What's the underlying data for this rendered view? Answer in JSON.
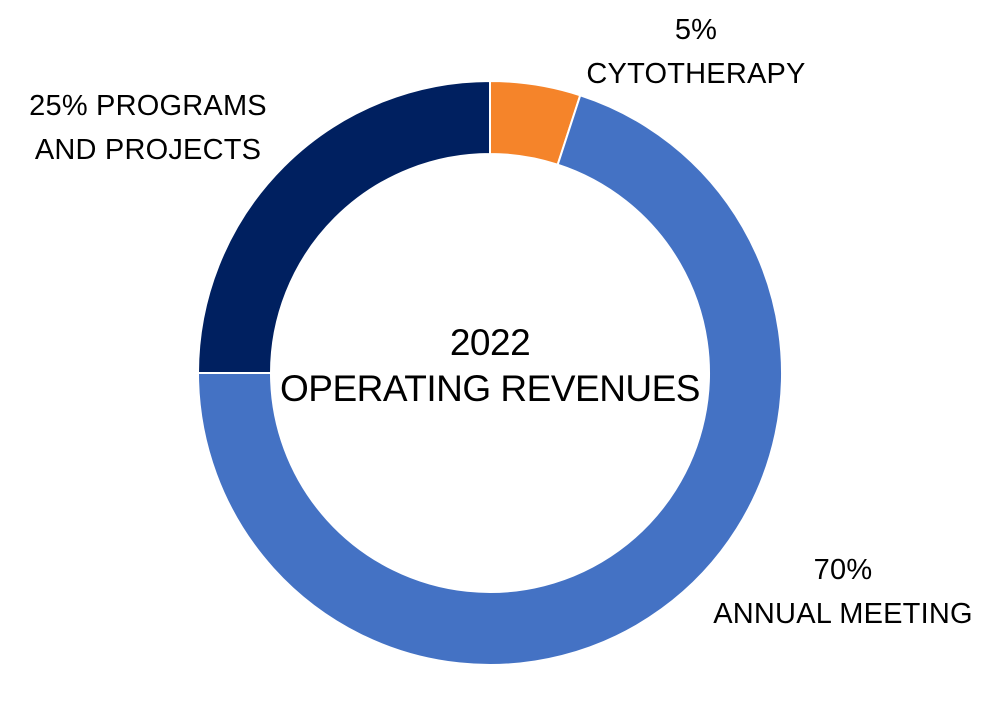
{
  "chart_data": {
    "type": "pie",
    "variant": "donut",
    "title_line1": "2022",
    "title_line2": "OPERATING REVENUES",
    "slices": [
      {
        "category": "CYTOTHERAPY",
        "value": 5,
        "value_label": "5%",
        "color": "#F5842A"
      },
      {
        "category": "ANNUAL MEETING",
        "value": 70,
        "value_label": "70%",
        "color": "#4472C4"
      },
      {
        "category": "PROGRAMS AND PROJECTS",
        "value": 25,
        "value_label": "25% PROGRAMS",
        "category_label": "AND PROJECTS",
        "color": "#002060"
      }
    ],
    "legend": "none"
  }
}
